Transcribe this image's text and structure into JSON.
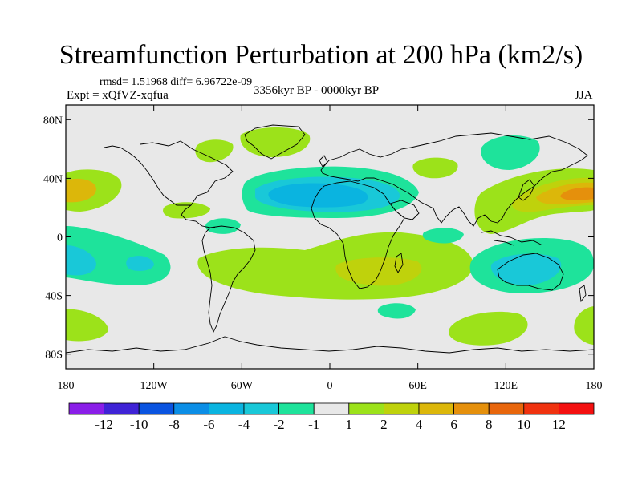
{
  "title": "Streamfunction Perturbation at 200 hPa (km2/s)",
  "stats": "rmsd= 1.51968 diff= 6.96722e-09",
  "period": "3356kyr BP - 0000kyr BP",
  "experiment": "Expt = xQfVZ-xqfua",
  "season": "JJA",
  "chart_data": {
    "type": "heatmap",
    "title": "Streamfunction Perturbation at 200 hPa (km2/s)",
    "x_axis": {
      "range": [
        -180,
        180
      ],
      "ticks": [
        -180,
        -120,
        -60,
        0,
        60,
        120,
        180
      ],
      "tick_labels": [
        "180",
        "120W",
        "60W",
        "0",
        "60E",
        "120E",
        "180"
      ]
    },
    "y_axis": {
      "range": [
        -90,
        90
      ],
      "ticks": [
        80,
        40,
        0,
        -40,
        -80
      ],
      "tick_labels": [
        "80N",
        "40N",
        "0",
        "40S",
        "80S"
      ]
    },
    "colorbar": {
      "levels": [
        "-12",
        "-10",
        "-8",
        "-6",
        "-4",
        "-2",
        "-1",
        "1",
        "2",
        "4",
        "6",
        "8",
        "10",
        "12"
      ],
      "colors": [
        "#8a1ee8",
        "#3f23d6",
        "#0a54e0",
        "#0b8ee6",
        "#0ab4e0",
        "#19c8d8",
        "#1ee39b",
        "#e8e8e8",
        "#9ce21a",
        "#bfd20c",
        "#dcb70a",
        "#e5900c",
        "#e8660c",
        "#f0320f",
        "#f41010"
      ]
    },
    "features": [
      {
        "region": "North Pacific (west, ~165W 30N)",
        "category": "4 to 6"
      },
      {
        "region": "North Pacific (east of Japan, ~165E 35N)",
        "category": "6 to 8"
      },
      {
        "region": "North Atlantic / Sahara (~10E 30N)",
        "category": "-4 to -2"
      },
      {
        "region": "Tropical Atlantic / southern Africa (~30E 25S)",
        "category": "2 to 4"
      },
      {
        "region": "Australia (~130E 25S)",
        "category": "-4 to -2"
      },
      {
        "region": "Eastern tropical Pacific (~160W 15S)",
        "category": "-2 to -1"
      },
      {
        "region": "Northern Europe / Arctic (~20W 70N)",
        "category": "1 to 2"
      },
      {
        "region": "Southern Ocean (~75E 55S)",
        "category": "1 to 2"
      }
    ]
  }
}
